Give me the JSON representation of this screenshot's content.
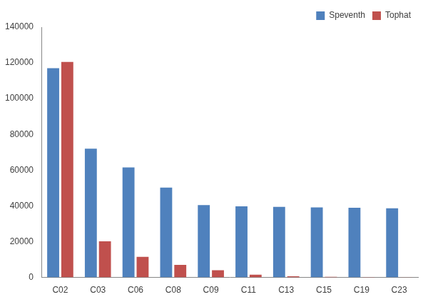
{
  "chart_data": {
    "type": "bar",
    "categories": [
      "C02",
      "C03",
      "C06",
      "C08",
      "C09",
      "C11",
      "C13",
      "C15",
      "C19",
      "C23"
    ],
    "series": [
      {
        "name": "Speventh",
        "color": "#4f81bd",
        "values": [
          117000,
          72000,
          61500,
          50300,
          40500,
          39800,
          39500,
          39200,
          39000,
          38700
        ]
      },
      {
        "name": "Tophat",
        "color": "#c0504d",
        "values": [
          120500,
          20200,
          11500,
          7000,
          4000,
          1500,
          600,
          300,
          200,
          100
        ]
      }
    ],
    "ylim": [
      0,
      140000
    ],
    "yticks": [
      0,
      20000,
      40000,
      60000,
      80000,
      100000,
      120000,
      140000
    ],
    "grid": false,
    "legend": "top-right"
  }
}
